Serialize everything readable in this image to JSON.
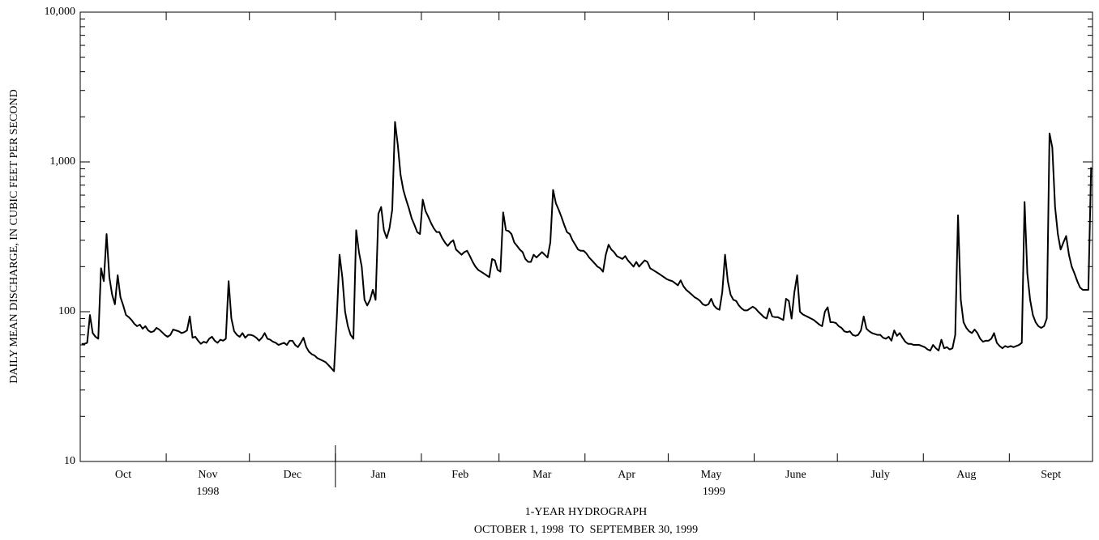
{
  "chart_data": {
    "type": "line",
    "title": "1-YEAR HYDROGRAPH",
    "subtitle": "OCTOBER 1, 1998  TO  SEPTEMBER 30, 1999",
    "ylabel": "DAILY MEAN DISCHARGE, IN CUBIC FEET PER SECOND",
    "log_y": true,
    "color": "#000000",
    "ylim": [
      10,
      10000
    ],
    "yticks": [
      10,
      100,
      {
        "value": 1000,
        "label": "1,000"
      },
      {
        "value": 10000,
        "label": "10,000"
      }
    ],
    "years": [
      {
        "label": "1998",
        "months": [
          {
            "label": "Oct",
            "values": [
              61,
              61,
              62,
              95,
              72,
              68,
              66,
              195,
              160,
              330,
              170,
              130,
              112,
              175,
              125,
              110,
              95,
              92,
              88,
              83,
              80,
              82,
              77,
              80,
              75,
              73,
              74,
              78,
              76,
              73,
              70
            ]
          },
          {
            "label": "Nov",
            "values": [
              68,
              70,
              76,
              75,
              74,
              72,
              73,
              75,
              93,
              67,
              68,
              64,
              61,
              63,
              62,
              66,
              68,
              64,
              62,
              65,
              64,
              66,
              160,
              90,
              74,
              70,
              68,
              72,
              67,
              70
            ]
          },
          {
            "label": "Dec",
            "values": [
              70,
              69,
              67,
              64,
              67,
              72,
              66,
              65,
              63,
              62,
              60,
              61,
              62,
              60,
              64,
              64,
              60,
              58,
              62,
              67,
              58,
              54,
              52,
              51,
              49,
              48,
              47,
              46,
              44,
              42,
              40
            ]
          }
        ]
      },
      {
        "label": "1999",
        "months": [
          {
            "label": "Jan",
            "values": [
              90,
              240,
              170,
              100,
              80,
              70,
              66,
              350,
              250,
              200,
              120,
              110,
              120,
              140,
              120,
              450,
              500,
              350,
              310,
              360,
              480,
              1850,
              1300,
              820,
              650,
              560,
              490,
              420,
              380,
              340,
              330
            ]
          },
          {
            "label": "Feb",
            "values": [
              560,
              470,
              430,
              390,
              360,
              340,
              340,
              310,
              290,
              275,
              290,
              300,
              260,
              250,
              240,
              250,
              255,
              235,
              215,
              200,
              190,
              185,
              180,
              175,
              170,
              225,
              220,
              190
            ]
          },
          {
            "label": "Mar",
            "values": [
              185,
              460,
              350,
              345,
              330,
              290,
              275,
              260,
              250,
              225,
              215,
              215,
              240,
              230,
              240,
              250,
              240,
              230,
              290,
              650,
              530,
              480,
              430,
              380,
              340,
              330,
              300,
              280,
              260,
              255,
              255
            ]
          },
          {
            "label": "Apr",
            "values": [
              245,
              230,
              220,
              210,
              200,
              195,
              185,
              240,
              280,
              260,
              250,
              235,
              230,
              225,
              235,
              220,
              210,
              200,
              215,
              200,
              210,
              220,
              215,
              195,
              190,
              185,
              180,
              175,
              170,
              165
            ]
          },
          {
            "label": "May",
            "values": [
              162,
              160,
              155,
              150,
              162,
              148,
              140,
              135,
              130,
              125,
              122,
              118,
              112,
              110,
              112,
              122,
              110,
              105,
              103,
              135,
              240,
              160,
              130,
              120,
              118,
              110,
              105,
              102,
              102,
              105,
              108
            ]
          },
          {
            "label": "June",
            "values": [
              105,
              100,
              96,
              92,
              90,
              105,
              93,
              92,
              92,
              90,
              88,
              122,
              118,
              90,
              135,
              175,
              100,
              96,
              94,
              92,
              90,
              88,
              85,
              82,
              80,
              100,
              107,
              85,
              85,
              84
            ]
          },
          {
            "label": "July",
            "values": [
              80,
              78,
              74,
              73,
              74,
              70,
              69,
              70,
              75,
              93,
              77,
              74,
              72,
              71,
              70,
              70,
              67,
              66,
              68,
              64,
              75,
              69,
              72,
              67,
              63,
              61,
              61,
              60,
              60,
              60,
              59
            ]
          },
          {
            "label": "Aug",
            "values": [
              58,
              56,
              55,
              60,
              57,
              55,
              65,
              57,
              58,
              56,
              57,
              70,
              440,
              120,
              85,
              78,
              74,
              72,
              76,
              72,
              66,
              63,
              64,
              64,
              66,
              72,
              62,
              59,
              57,
              59,
              58
            ]
          },
          {
            "label": "Sept",
            "values": [
              59,
              58,
              59,
              60,
              62,
              540,
              180,
              120,
              95,
              85,
              80,
              78,
              80,
              90,
              1550,
              1250,
              500,
              330,
              260,
              290,
              320,
              240,
              200,
              180,
              160,
              145,
              140,
              140,
              140,
              920
            ]
          }
        ]
      }
    ]
  }
}
